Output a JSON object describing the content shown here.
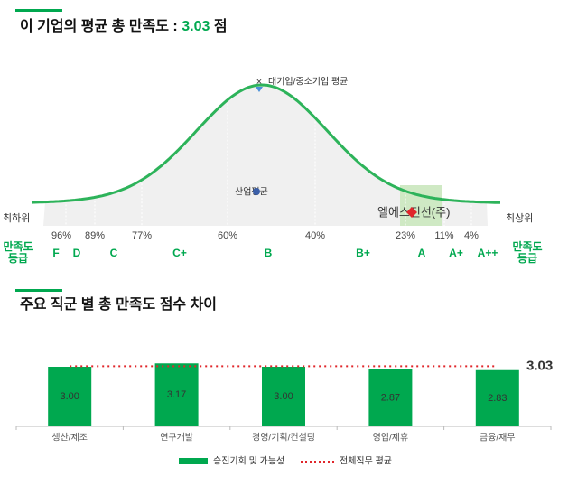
{
  "summary": {
    "title": "이 기업의 평균 총 만족도 :",
    "score": "3.03",
    "unit": "점"
  },
  "distribution": {
    "large_company_label": "대기업/중소기업 평균",
    "industry_label": "산업평균",
    "company_label": "엘에스전선(주)",
    "lowest": "최하위",
    "highest": "최상위",
    "percentiles": [
      "96%",
      "89%",
      "77%",
      "60%",
      "40%",
      "23%",
      "11%",
      "4%"
    ],
    "grades": [
      "F",
      "D",
      "C",
      "C+",
      "B",
      "B+",
      "A",
      "A+",
      "A++"
    ],
    "grade_label": [
      "만족도",
      "등급"
    ]
  },
  "chart_data": {
    "type": "bar",
    "title": "주요 직군 별 총 만족도 점수 차이",
    "categories": [
      "생산/제조",
      "연구개발",
      "경영/기획/컨설팅",
      "영업/제휴",
      "금융/재무"
    ],
    "series": [
      {
        "name": "승진기회 및 가능성",
        "color": "#00a84f",
        "values": [
          3.0,
          3.17,
          3.0,
          2.87,
          2.83
        ],
        "value_labels": [
          "3.00",
          "3.17",
          "3.00",
          "2.87",
          "2.83"
        ]
      }
    ],
    "reference": {
      "name": "전체직무 평균",
      "value": 3.03,
      "color": "#e0262b"
    },
    "ylim": [
      0,
      3.5
    ]
  }
}
